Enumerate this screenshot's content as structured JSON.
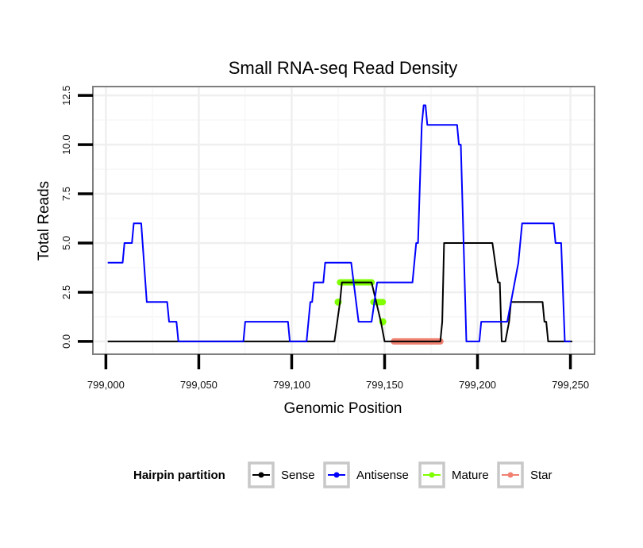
{
  "chart_data": {
    "type": "line",
    "title": "Small RNA-seq Read Density",
    "xlabel": "Genomic Position",
    "ylabel": "Total Reads",
    "xlim": [
      798993,
      799263
    ],
    "ylim": [
      -0.65,
      12.95
    ],
    "x_ticks": [
      799000,
      799050,
      799100,
      799150,
      799200,
      799250
    ],
    "x_tick_labels": [
      "799,000",
      "799,050",
      "799,100",
      "799,150",
      "799,200",
      "799,250"
    ],
    "y_ticks": [
      0,
      2.5,
      5,
      7.5,
      10,
      12.5
    ],
    "y_tick_labels": [
      "0.0",
      "2.5",
      "5.0",
      "7.5",
      "10.0",
      "12.5"
    ],
    "grid": true,
    "legend": {
      "title": "Hairpin partition",
      "position": "bottom",
      "entries": [
        "Sense",
        "Antisense",
        "Mature",
        "Star"
      ]
    },
    "series": [
      {
        "name": "Sense",
        "color": "#000000",
        "style": "line",
        "points": [
          [
            799001,
            0
          ],
          [
            799123,
            0
          ],
          [
            799126,
            2
          ],
          [
            799127,
            3
          ],
          [
            799136,
            3
          ],
          [
            799143,
            3
          ],
          [
            799148,
            1
          ],
          [
            799150,
            0
          ],
          [
            799180,
            0
          ],
          [
            799181,
            1
          ],
          [
            799182,
            5
          ],
          [
            799208,
            5
          ],
          [
            799211,
            3
          ],
          [
            799212,
            3
          ],
          [
            799213,
            0
          ],
          [
            799215,
            0
          ],
          [
            799217,
            1
          ],
          [
            799218,
            2
          ],
          [
            799235,
            2
          ],
          [
            799236,
            1
          ],
          [
            799237,
            1
          ],
          [
            799238,
            0
          ],
          [
            799251,
            0
          ]
        ]
      },
      {
        "name": "Antisense",
        "color": "#0000FF",
        "style": "line",
        "points": [
          [
            799001,
            4
          ],
          [
            799009,
            4
          ],
          [
            799010,
            5
          ],
          [
            799014,
            5
          ],
          [
            799015,
            6
          ],
          [
            799019,
            6
          ],
          [
            799022,
            2
          ],
          [
            799033,
            2
          ],
          [
            799034,
            1
          ],
          [
            799038,
            1
          ],
          [
            799039,
            0
          ],
          [
            799074,
            0
          ],
          [
            799075,
            1
          ],
          [
            799098,
            1
          ],
          [
            799099,
            0
          ],
          [
            799108,
            0
          ],
          [
            799110,
            2
          ],
          [
            799111,
            2
          ],
          [
            799112,
            3
          ],
          [
            799117,
            3
          ],
          [
            799118,
            4
          ],
          [
            799132,
            4
          ],
          [
            799136,
            1
          ],
          [
            799143,
            1
          ],
          [
            799146,
            3
          ],
          [
            799165,
            3
          ],
          [
            799167,
            5
          ],
          [
            799168,
            5
          ],
          [
            799170,
            11
          ],
          [
            799171,
            12
          ],
          [
            799172,
            12
          ],
          [
            799173,
            11
          ],
          [
            799189,
            11
          ],
          [
            799190,
            10
          ],
          [
            799191,
            10
          ],
          [
            799194,
            0
          ],
          [
            799201,
            0
          ],
          [
            799202,
            1
          ],
          [
            799216,
            1
          ],
          [
            799218,
            2
          ],
          [
            799222,
            4
          ],
          [
            799224,
            6
          ],
          [
            799241,
            6
          ],
          [
            799242,
            5
          ],
          [
            799245,
            5
          ],
          [
            799247,
            0
          ],
          [
            799250,
            0
          ]
        ]
      },
      {
        "name": "Mature",
        "color": "#7FFF00",
        "style": "segments",
        "segments": [
          [
            [
              799125,
              2
            ],
            [
              799125,
              2
            ]
          ],
          [
            [
              799126,
              3
            ],
            [
              799143,
              3
            ]
          ],
          [
            [
              799144,
              2
            ],
            [
              799149,
              2
            ]
          ],
          [
            [
              799149,
              1
            ],
            [
              799149,
              1
            ]
          ]
        ]
      },
      {
        "name": "Star",
        "color": "#F08070",
        "style": "segments",
        "segments": [
          [
            [
              799155,
              0
            ],
            [
              799180,
              0
            ]
          ]
        ]
      }
    ]
  }
}
